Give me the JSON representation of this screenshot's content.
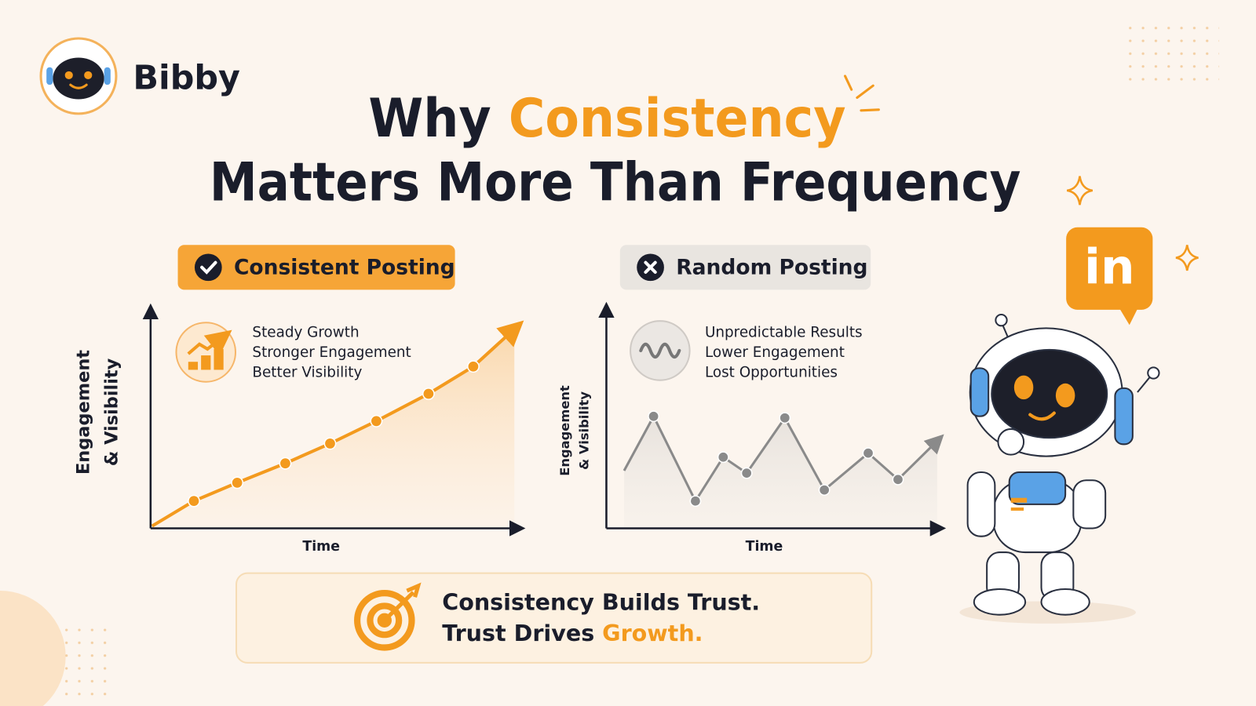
{
  "brand": "Bibby",
  "title": {
    "line1_start": "Why ",
    "line1_highlight": "Consistency",
    "line2": "Matters More Than Frequency"
  },
  "badge_icon_text": "in",
  "chart_data": [
    {
      "type": "line",
      "title": "Consistent Posting",
      "notes": [
        "Steady Growth",
        "Stronger Engagement",
        "Better Visibility"
      ],
      "y_label": [
        "Engagement",
        "& Visibility"
      ],
      "x_label": "Time",
      "color": "#f39a1e",
      "xlim": [
        0,
        100
      ],
      "ylim": [
        0,
        100
      ],
      "x": [
        0.4,
        11.7,
        23.4,
        36.4,
        48.5,
        61,
        75.1,
        87.2,
        98.3
      ],
      "values": [
        1,
        12.4,
        20.7,
        29.5,
        38.5,
        48.7,
        61.1,
        73.5,
        90.5
      ]
    },
    {
      "type": "line",
      "title": "Random Posting",
      "notes": [
        "Unpredictable Results",
        "Lower Engagement",
        "Lost Opportunities"
      ],
      "y_label": [
        "Engagement",
        "& Visibility"
      ],
      "x_label": "Time",
      "color": "#8a8a8a",
      "xlim": [
        0,
        100
      ],
      "ylim": [
        0,
        100
      ],
      "x": [
        5.3,
        14.1,
        26.6,
        34.9,
        41.9,
        53.3,
        65.1,
        78.2,
        87.1,
        98.8
      ],
      "values": [
        26,
        50.5,
        12.3,
        32.1,
        24.9,
        49.8,
        17.3,
        33.9,
        22,
        39.4
      ]
    }
  ],
  "footer": {
    "line1": "Consistency Builds Trust.",
    "line2_start": "Trust Drives ",
    "line2_highlight": "Growth."
  }
}
